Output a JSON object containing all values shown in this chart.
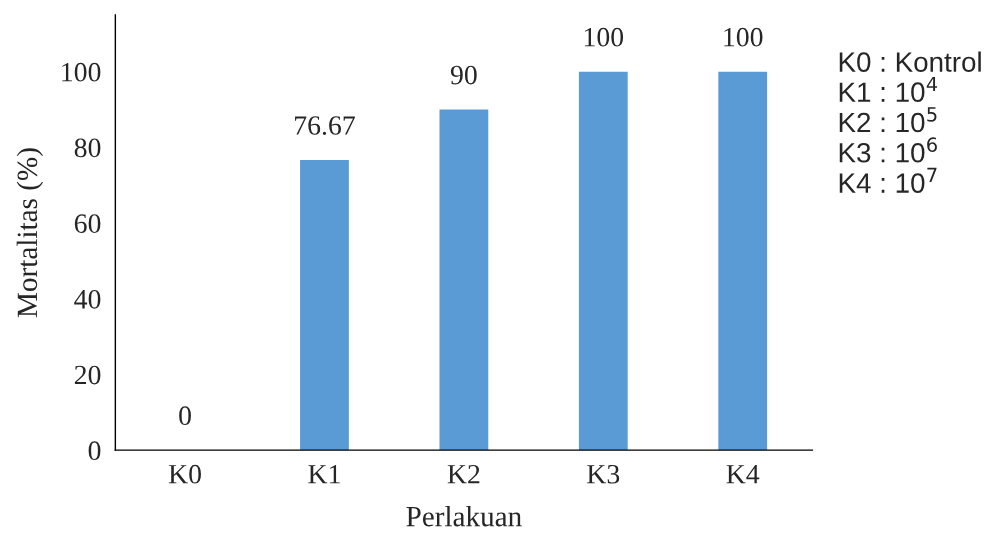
{
  "chart_data": {
    "type": "bar",
    "xlabel": "Perlakuan",
    "ylabel": "Mortalitas (%)",
    "categories": [
      "K0",
      "K1",
      "K2",
      "K3",
      "K4"
    ],
    "values": [
      0,
      76.67,
      90,
      100,
      100
    ],
    "color": "#5b9bd5",
    "ylim": [
      0,
      115
    ],
    "yticks": [
      0,
      20,
      40,
      60,
      80,
      100
    ],
    "grid": false,
    "data_labels": true,
    "annotations": [
      "K0 : Kontrol",
      "K1 : 10$^{4}$",
      "K2 : 10$^{5}$",
      "K3 : 10$^{6}$",
      "K4 : 10$^{7}$"
    ]
  }
}
